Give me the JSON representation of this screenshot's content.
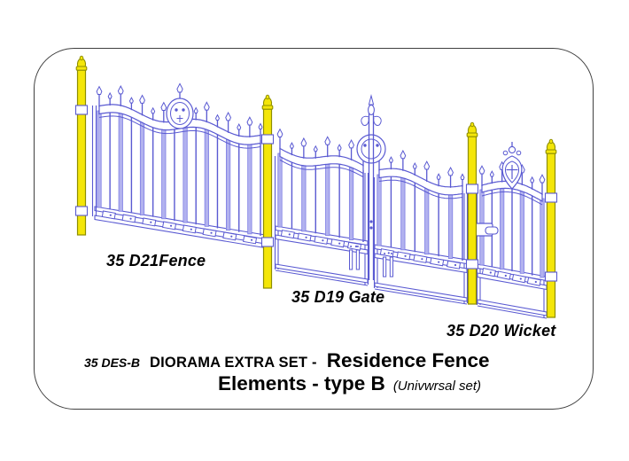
{
  "labels": {
    "fence": "35 D21Fence",
    "gate": "35 D19 Gate",
    "wicket": "35 D20 Wicket"
  },
  "title": {
    "code": "35 DES-B",
    "series": "DIORAMA EXTRA SET -",
    "name_line1": "Residence Fence",
    "name_line2": "Elements - type B",
    "note": "(Univwrsal set)"
  },
  "colors": {
    "line": "#5a5ad2",
    "bar_fill": "#b2b2ef",
    "bar_stroke": "#7d7de4",
    "post_fill": "#f4e608",
    "post_stroke": "#8e8e00",
    "border": "#3f3f3f",
    "text": "#000000",
    "background": "#ffffff"
  }
}
